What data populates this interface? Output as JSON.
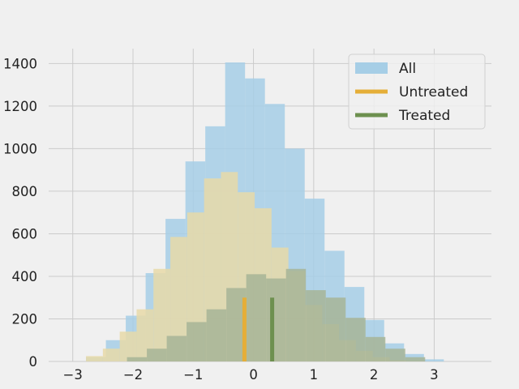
{
  "chart_data": {
    "type": "bar",
    "subtype": "overlaid-histogram",
    "title": "",
    "xlabel": "",
    "ylabel": "",
    "xlim": [
      -3.4,
      3.95
    ],
    "ylim": [
      0,
      1470
    ],
    "xticks": [
      -3,
      -2,
      -1,
      0,
      1,
      2,
      3
    ],
    "yticks": [
      0,
      200,
      400,
      600,
      800,
      1000,
      1200,
      1400
    ],
    "grid": true,
    "legend_position": "top-right",
    "series": [
      {
        "name": "All",
        "kind": "histogram",
        "color": "#a6cee6",
        "bin_edges": [
          -2.78,
          -2.45,
          -2.12,
          -1.79,
          -1.46,
          -1.13,
          -0.8,
          -0.47,
          -0.14,
          0.19,
          0.52,
          0.85,
          1.18,
          1.51,
          1.84,
          2.17,
          2.5,
          2.83,
          3.16
        ],
        "counts": [
          20,
          100,
          215,
          415,
          670,
          940,
          1105,
          1405,
          1330,
          1210,
          1000,
          765,
          520,
          350,
          195,
          85,
          35,
          10
        ]
      },
      {
        "name": "Untreated",
        "kind": "histogram",
        "color": "#e7d9a8",
        "bin_edges": [
          -2.78,
          -2.5,
          -2.22,
          -1.94,
          -1.66,
          -1.38,
          -1.1,
          -0.82,
          -0.54,
          -0.26,
          0.02,
          0.3,
          0.58,
          0.86,
          1.14,
          1.42,
          1.7,
          1.98,
          2.26,
          2.54,
          2.82
        ],
        "counts": [
          25,
          60,
          140,
          245,
          435,
          585,
          700,
          860,
          890,
          795,
          720,
          535,
          425,
          265,
          175,
          100,
          50,
          20,
          5,
          2
        ]
      },
      {
        "name": "Treated",
        "kind": "histogram",
        "color": "#a7b497",
        "bin_edges": [
          -2.1,
          -1.77,
          -1.44,
          -1.11,
          -0.78,
          -0.45,
          -0.12,
          0.21,
          0.54,
          0.87,
          1.2,
          1.53,
          1.86,
          2.19,
          2.52,
          2.85
        ],
        "counts": [
          20,
          60,
          120,
          185,
          245,
          345,
          410,
          390,
          435,
          335,
          300,
          205,
          115,
          60,
          20
        ]
      }
    ],
    "mean_markers": [
      {
        "name": "Untreated",
        "x": -0.15,
        "height": 300,
        "color": "#e5ae38"
      },
      {
        "name": "Treated",
        "x": 0.31,
        "height": 300,
        "color": "#6d904f"
      }
    ],
    "legend": [
      {
        "label": "All",
        "color": "#a6cee6",
        "style": "patch"
      },
      {
        "label": "Untreated",
        "color": "#e5ae38",
        "style": "line"
      },
      {
        "label": "Treated",
        "color": "#6d904f",
        "style": "line"
      }
    ]
  }
}
